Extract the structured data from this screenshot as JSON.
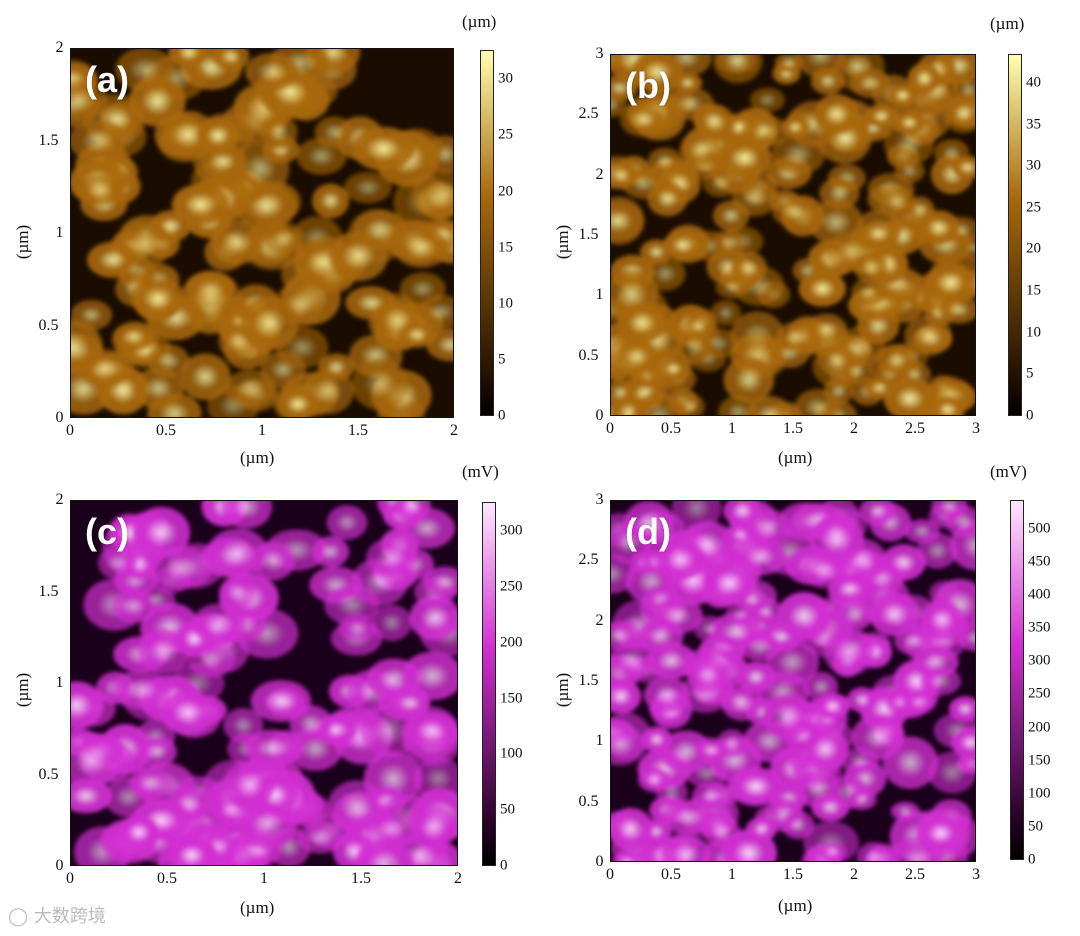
{
  "panels": [
    {
      "label": "(a)",
      "x_ticks": [
        "0",
        "0.5",
        "1",
        "1.5",
        "2"
      ],
      "y_ticks": [
        "0",
        "0.5",
        "1",
        "1.5",
        "2"
      ],
      "x_title": "(µm)",
      "y_title": "(µm)",
      "colorbar_unit": "(µm)",
      "colorbar_ticks": [
        "0",
        "5",
        "10",
        "15",
        "20",
        "25",
        "30"
      ],
      "colormap": "gold",
      "colors": {
        "low": "#1a0d00",
        "mid": "#a8680a",
        "high": "#ffffb0"
      }
    },
    {
      "label": "(b)",
      "x_ticks": [
        "0",
        "0.5",
        "1",
        "1.5",
        "2",
        "2.5",
        "3"
      ],
      "y_ticks": [
        "0",
        "0.5",
        "1",
        "1.5",
        "2",
        "2.5",
        "3"
      ],
      "x_title": "(µm)",
      "y_title": "(µm)",
      "colorbar_unit": "(µm)",
      "colorbar_ticks": [
        "0",
        "5",
        "10",
        "15",
        "20",
        "25",
        "30",
        "35",
        "40"
      ],
      "colormap": "gold",
      "colors": {
        "low": "#1a0d00",
        "mid": "#a8680a",
        "high": "#ffffb0"
      }
    },
    {
      "label": "(c)",
      "x_ticks": [
        "0",
        "0.5",
        "1",
        "1.5",
        "2"
      ],
      "y_ticks": [
        "0",
        "0.5",
        "1",
        "1.5",
        "2"
      ],
      "x_title": "(µm)",
      "y_title": "(µm)",
      "colorbar_unit": "(mV)",
      "colorbar_ticks": [
        "0",
        "50",
        "100",
        "150",
        "200",
        "250",
        "300"
      ],
      "colormap": "magenta",
      "colors": {
        "low": "#1a001a",
        "mid": "#d22fd2",
        "high": "#ffe6ff"
      }
    },
    {
      "label": "(d)",
      "x_ticks": [
        "0",
        "0.5",
        "1",
        "1.5",
        "2",
        "2.5",
        "3"
      ],
      "y_ticks": [
        "0",
        "0.5",
        "1",
        "1.5",
        "2",
        "2.5",
        "3"
      ],
      "x_title": "(µm)",
      "y_title": "(µm)",
      "colorbar_unit": "(mV)",
      "colorbar_ticks": [
        "0",
        "50",
        "100",
        "150",
        "200",
        "250",
        "300",
        "350",
        "400",
        "450",
        "500"
      ],
      "colormap": "magenta",
      "colors": {
        "low": "#1a001a",
        "mid": "#d22fd2",
        "high": "#ffe6ff"
      }
    }
  ],
  "watermark": "大数跨境"
}
